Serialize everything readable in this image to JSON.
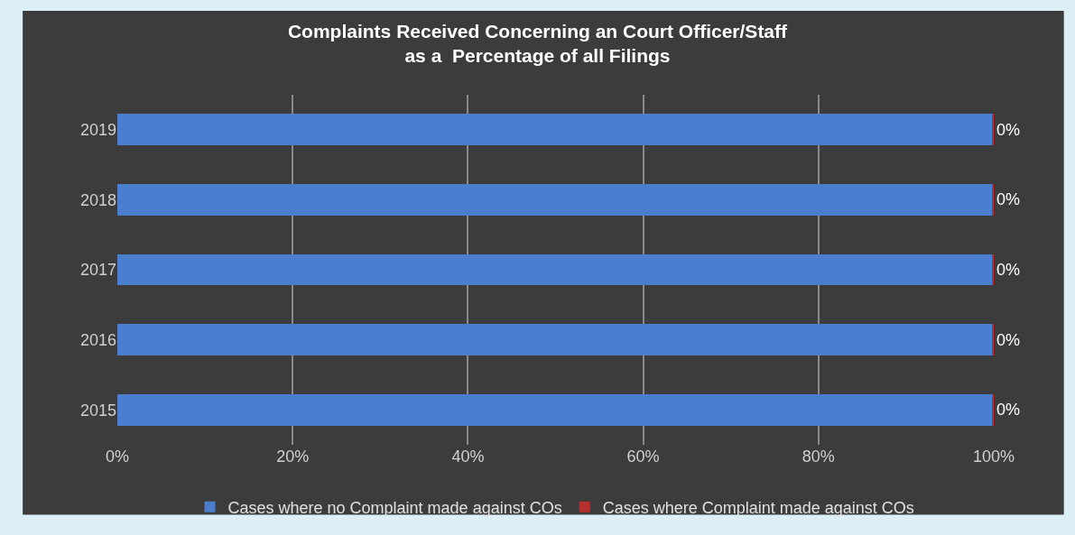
{
  "chart_data": {
    "type": "bar",
    "title": "Complaints Received Concerning an Court Officer/Staff\nas a  Percentage of all Filings",
    "orientation": "horizontal",
    "stacked": true,
    "categories": [
      "2019",
      "2018",
      "2017",
      "2016",
      "2015"
    ],
    "series": [
      {
        "name": "Cases where no Complaint made against COs",
        "color": "#4a7fd0",
        "values": [
          99.8,
          99.8,
          99.8,
          99.8,
          99.8
        ]
      },
      {
        "name": "Cases where Complaint made against COs",
        "color": "#b8302e",
        "values": [
          0.2,
          0.2,
          0.2,
          0.2,
          0.2
        ],
        "value_labels": [
          "0%",
          "0%",
          "0%",
          "0%",
          "0%"
        ]
      }
    ],
    "xlim": [
      0,
      100
    ],
    "xticks": [
      {
        "value": 0,
        "label": "0%"
      },
      {
        "value": 20,
        "label": "20%"
      },
      {
        "value": 40,
        "label": "40%"
      },
      {
        "value": 60,
        "label": "60%"
      },
      {
        "value": 80,
        "label": "80%"
      },
      {
        "value": 100,
        "label": "100%"
      }
    ],
    "grid": "x",
    "legend": "bottom"
  }
}
